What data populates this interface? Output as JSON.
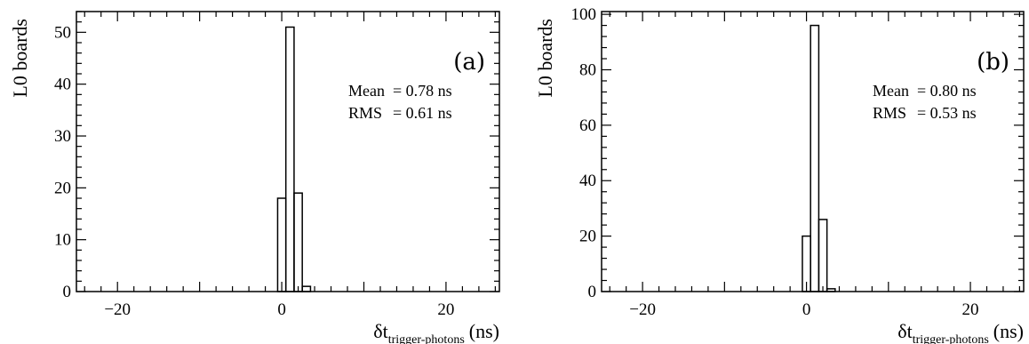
{
  "chart_data": [
    {
      "type": "bar",
      "panel_label": "(a)",
      "ylabel": "L0 boards",
      "xlabel": {
        "main": "δt",
        "sub": "trigger-photons",
        "unit": "(ns)"
      },
      "xlim": [
        -25,
        26.5
      ],
      "ylim": [
        0,
        54
      ],
      "x_ticks": [
        -20,
        0,
        20
      ],
      "x_tick_labels": [
        "−20",
        "0",
        "20"
      ],
      "y_ticks": [
        0,
        10,
        20,
        30,
        40,
        50
      ],
      "y_tick_labels": [
        "0",
        "10",
        "20",
        "30",
        "40",
        "50"
      ],
      "bins": [
        {
          "x0": -0.5,
          "x1": 0.5,
          "value": 18
        },
        {
          "x0": 0.5,
          "x1": 1.5,
          "value": 51
        },
        {
          "x0": 1.5,
          "x1": 2.5,
          "value": 19
        },
        {
          "x0": 2.5,
          "x1": 3.5,
          "value": 1
        }
      ],
      "stats": [
        {
          "label": "Mean",
          "value": "= 0.78 ns"
        },
        {
          "label": "RMS",
          "value": "= 0.61 ns"
        }
      ],
      "grid": false
    },
    {
      "type": "bar",
      "panel_label": "(b)",
      "ylabel": "L0 boards",
      "xlabel": {
        "main": "δt",
        "sub": "trigger-photons",
        "unit": "(ns)"
      },
      "xlim": [
        -25,
        26.5
      ],
      "ylim": [
        0,
        101
      ],
      "x_ticks": [
        -20,
        0,
        20
      ],
      "x_tick_labels": [
        "−20",
        "0",
        "20"
      ],
      "y_ticks": [
        0,
        20,
        40,
        60,
        80,
        100
      ],
      "y_tick_labels": [
        "0",
        "20",
        "40",
        "60",
        "80",
        "100"
      ],
      "bins": [
        {
          "x0": -0.5,
          "x1": 0.5,
          "value": 20
        },
        {
          "x0": 0.5,
          "x1": 1.5,
          "value": 96
        },
        {
          "x0": 1.5,
          "x1": 2.5,
          "value": 26
        },
        {
          "x0": 2.5,
          "x1": 3.5,
          "value": 1
        }
      ],
      "stats": [
        {
          "label": "Mean",
          "value": "= 0.80 ns"
        },
        {
          "label": "RMS",
          "value": "= 0.53 ns"
        }
      ],
      "grid": false
    }
  ]
}
